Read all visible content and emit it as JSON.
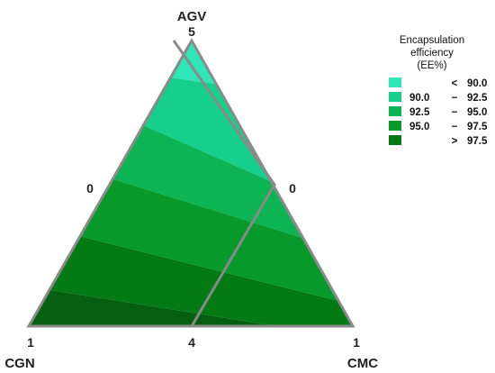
{
  "chart_data": {
    "type": "ternary-contour",
    "vertices": {
      "top": {
        "label": "AGV",
        "max": "5"
      },
      "left": {
        "label": "CGN",
        "max": "1"
      },
      "right": {
        "label": "CMC",
        "max": "1"
      }
    },
    "edge_ticks": {
      "left_edge": "0",
      "right_edge": "0",
      "bottom_edge": "4"
    },
    "feasible_region": "constrained quadrilateral inside the triangle",
    "legend": {
      "title_lines": [
        "Encapsulation",
        "efficiency",
        "(EE%)"
      ],
      "entries": [
        {
          "low": "",
          "sep": "<",
          "high": "90.0",
          "color": "#2ee6b8"
        },
        {
          "low": "90.0",
          "sep": "−",
          "high": "92.5",
          "color": "#16cf8c"
        },
        {
          "low": "92.5",
          "sep": "−",
          "high": "95.0",
          "color": "#0db454"
        },
        {
          "low": "95.0",
          "sep": "−",
          "high": "97.5",
          "color": "#079a2a"
        },
        {
          "low": "",
          "sep": ">",
          "high": "97.5",
          "color": "#047a14"
        }
      ]
    },
    "contour_levels": [
      90.0,
      92.5,
      95.0,
      97.5
    ]
  }
}
